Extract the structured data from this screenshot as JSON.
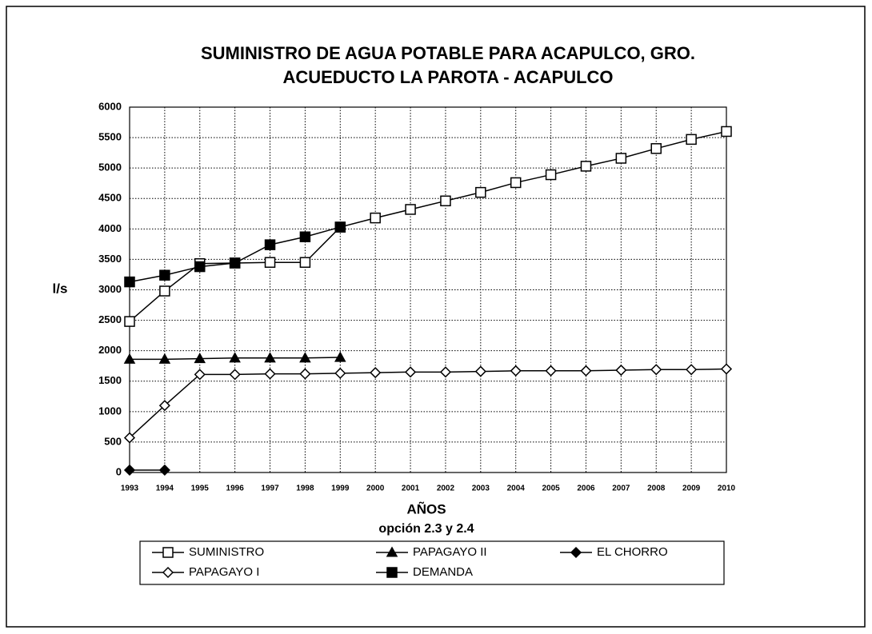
{
  "chart_data": {
    "type": "line",
    "title": "SUMINISTRO DE AGUA POTABLE PARA ACAPULCO, GRO.",
    "subtitle": "ACUEDUCTO LA PAROTA - ACAPULCO",
    "ylabel": "l/s",
    "xlabel": "AÑOS",
    "note": "opción 2.3 y 2.4",
    "categories": [
      "1993",
      "1994",
      "1995",
      "1996",
      "1997",
      "1998",
      "1999",
      "2000",
      "2001",
      "2002",
      "2003",
      "2004",
      "2005",
      "2006",
      "2007",
      "2008",
      "2009",
      "2010"
    ],
    "ylim": [
      0,
      6000
    ],
    "yticks": [
      0,
      500,
      1000,
      1500,
      2000,
      2500,
      3000,
      3500,
      4000,
      4500,
      5000,
      5500,
      6000
    ],
    "grid": true,
    "series": [
      {
        "name": "SUMINISTRO",
        "color": "#000000",
        "marker": "square-open",
        "values": [
          2480,
          2980,
          3430,
          3440,
          3450,
          3450,
          4030,
          4180,
          4320,
          4460,
          4600,
          4760,
          4890,
          5030,
          5160,
          5320,
          5470,
          5600
        ]
      },
      {
        "name": "PAPAGAYO II",
        "color": "#000000",
        "marker": "triangle-filled",
        "values": [
          1860,
          1860,
          1870,
          1880,
          1880,
          1880,
          1890,
          null,
          null,
          null,
          null,
          null,
          null,
          null,
          null,
          null,
          null,
          null
        ]
      },
      {
        "name": "EL CHORRO",
        "color": "#000000",
        "marker": "diamond-filled",
        "values": [
          40,
          40,
          null,
          null,
          null,
          null,
          null,
          null,
          null,
          null,
          null,
          null,
          null,
          null,
          null,
          null,
          null,
          null
        ]
      },
      {
        "name": "PAPAGAYO I",
        "color": "#000000",
        "marker": "diamond-open",
        "values": [
          570,
          1100,
          1610,
          1610,
          1620,
          1620,
          1630,
          1640,
          1650,
          1650,
          1660,
          1670,
          1670,
          1670,
          1680,
          1690,
          1690,
          1700
        ]
      },
      {
        "name": "DEMANDA",
        "color": "#000000",
        "marker": "square-filled",
        "values": [
          3130,
          3240,
          3380,
          3440,
          3740,
          3870,
          4030,
          null,
          null,
          null,
          null,
          null,
          null,
          null,
          null,
          null,
          null,
          null
        ]
      }
    ]
  }
}
